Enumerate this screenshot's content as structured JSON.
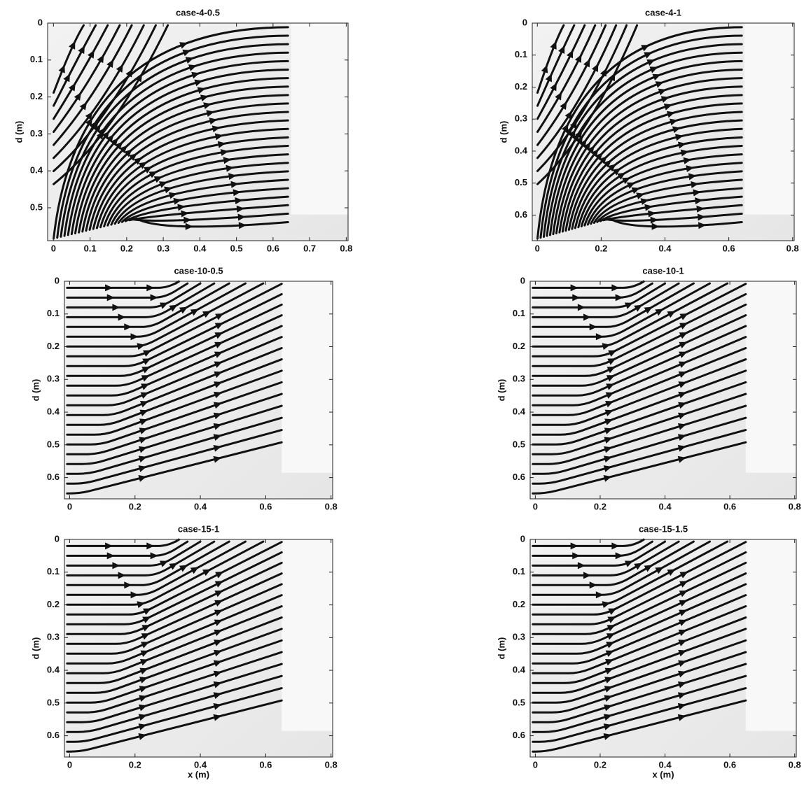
{
  "chart_data": [
    {
      "type": "streamline",
      "title": "case-4-0.5",
      "x_label": null,
      "y_label": "d (m)",
      "xlim": [
        -0.016,
        0.805
      ],
      "ylim": [
        0,
        0.589
      ],
      "y_inverted": true,
      "xticks": [
        0,
        0.1,
        0.2,
        0.3,
        0.4,
        0.5,
        0.6,
        0.7,
        0.8
      ],
      "yticks": [
        0,
        0.1,
        0.2,
        0.3,
        0.4,
        0.5
      ]
    },
    {
      "type": "streamline",
      "title": "case-4-1",
      "x_label": null,
      "y_label": "d (m)",
      "xlim": [
        -0.016,
        0.805
      ],
      "ylim": [
        0,
        0.68
      ],
      "y_inverted": true,
      "xticks": [
        0,
        0.2,
        0.4,
        0.6,
        0.8
      ],
      "yticks": [
        0,
        0.1,
        0.2,
        0.3,
        0.4,
        0.5,
        0.6
      ]
    },
    {
      "type": "streamline",
      "title": "case-10-0.5",
      "x_label": null,
      "y_label": "d (m)",
      "xlim": [
        -0.016,
        0.805
      ],
      "ylim": [
        0,
        0.665
      ],
      "y_inverted": true,
      "xticks": [
        0,
        0.2,
        0.4,
        0.6,
        0.8
      ],
      "yticks": [
        0,
        0.1,
        0.2,
        0.3,
        0.4,
        0.5,
        0.6
      ]
    },
    {
      "type": "streamline",
      "title": "case-10-1",
      "x_label": null,
      "y_label": "d (m)",
      "xlim": [
        -0.016,
        0.805
      ],
      "ylim": [
        0,
        0.665
      ],
      "y_inverted": true,
      "xticks": [
        0,
        0.2,
        0.4,
        0.6,
        0.8
      ],
      "yticks": [
        0,
        0.1,
        0.2,
        0.3,
        0.4,
        0.5,
        0.6
      ]
    },
    {
      "type": "streamline",
      "title": "case-15-1",
      "x_label": "x (m)",
      "y_label": "d (m)",
      "xlim": [
        -0.016,
        0.805
      ],
      "ylim": [
        0,
        0.665
      ],
      "y_inverted": true,
      "xticks": [
        0,
        0.2,
        0.4,
        0.6,
        0.8
      ],
      "yticks": [
        0,
        0.1,
        0.2,
        0.3,
        0.4,
        0.5,
        0.6
      ]
    },
    {
      "type": "streamline",
      "title": "case-15-1.5",
      "x_label": "x (m)",
      "y_label": "d (m)",
      "xlim": [
        -0.016,
        0.805
      ],
      "ylim": [
        0,
        0.665
      ],
      "y_inverted": true,
      "xticks": [
        0,
        0.2,
        0.4,
        0.6,
        0.8
      ],
      "yticks": [
        0,
        0.1,
        0.2,
        0.3,
        0.4,
        0.5,
        0.6
      ]
    }
  ]
}
